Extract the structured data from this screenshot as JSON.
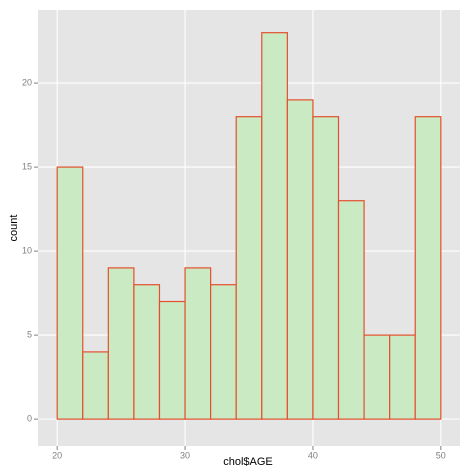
{
  "chart_data": {
    "type": "histogram",
    "x_label": "chol$AGE",
    "y_label": "count",
    "bins": [
      20,
      22,
      24,
      26,
      28,
      30,
      32,
      34,
      36,
      38,
      40,
      42,
      44,
      46,
      48,
      50
    ],
    "values": [
      15,
      4,
      9,
      8,
      7,
      9,
      8,
      18,
      23,
      19,
      18,
      13,
      5,
      5,
      18
    ],
    "fill": "#c9eac3",
    "color": "#e4502e",
    "xlim": [
      18.5,
      51.5
    ],
    "ylim": [
      -1.6,
      24.35
    ],
    "xticks": [
      20,
      30,
      40,
      50
    ],
    "yticks": [
      0,
      5,
      10,
      15,
      20
    ],
    "grid": true,
    "panel_background": "#e5e5e5"
  }
}
